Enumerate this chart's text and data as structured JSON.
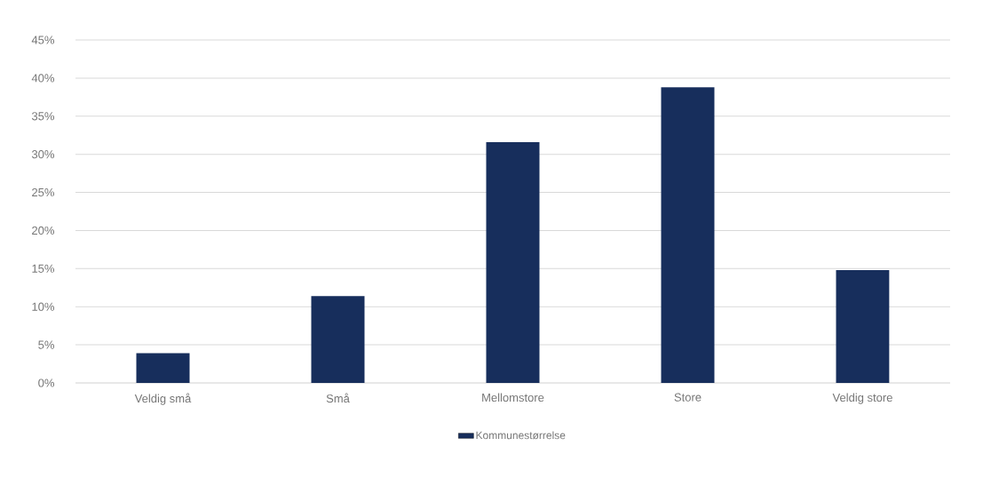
{
  "chart_data": {
    "type": "bar",
    "categories": [
      "Veldig små",
      "Små",
      "Mellomstore",
      "Store",
      "Veldig store"
    ],
    "series": [
      {
        "name": "Kommunestørrelse",
        "color": "#172e5c",
        "values": [
          3.9,
          11.4,
          31.6,
          38.8,
          14.8
        ]
      }
    ],
    "ylim": [
      0,
      45
    ],
    "yticks": [
      {
        "value": 0,
        "label": "0%"
      },
      {
        "value": 5,
        "label": "5%"
      },
      {
        "value": 10,
        "label": "10%"
      },
      {
        "value": 15,
        "label": "15%"
      },
      {
        "value": 20,
        "label": "20%"
      },
      {
        "value": 25,
        "label": "25%"
      },
      {
        "value": 30,
        "label": "30%"
      },
      {
        "value": 35,
        "label": "35%"
      },
      {
        "value": 40,
        "label": "40%"
      },
      {
        "value": 45,
        "label": "45%"
      }
    ],
    "grid": "y",
    "legend": "bottom"
  }
}
